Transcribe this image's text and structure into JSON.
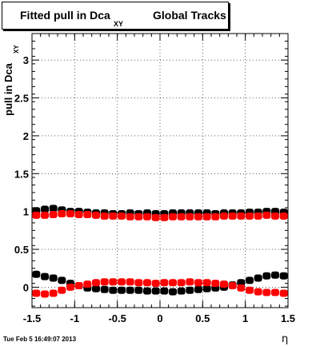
{
  "title": {
    "main": "Fitted pull in Dca",
    "subscript": "XY",
    "rest": "Global Tracks"
  },
  "footer": "Tue Feb  5 16:49:07 2013",
  "chart_data": {
    "type": "scatter",
    "xlabel": "η",
    "ylabel": "pull in Dca",
    "ylabel_subscript": "XY",
    "xlim": [
      -1.5,
      1.5
    ],
    "ylim": [
      -0.27,
      3.35
    ],
    "grid": true,
    "x_ticks": [
      "-1.5",
      "-1",
      "-0.5",
      "0",
      "0.5",
      "1",
      "1.5"
    ],
    "y_ticks": [
      "0",
      "0.5",
      "1",
      "1.5",
      "2",
      "2.5",
      "3"
    ],
    "colors": {
      "black": "#000000",
      "red": "#ff0000"
    },
    "x": [
      -1.45,
      -1.35,
      -1.25,
      -1.15,
      -1.05,
      -0.95,
      -0.85,
      -0.75,
      -0.65,
      -0.55,
      -0.45,
      -0.35,
      -0.25,
      -0.15,
      -0.05,
      0.05,
      0.15,
      0.25,
      0.35,
      0.45,
      0.55,
      0.65,
      0.75,
      0.85,
      0.95,
      1.05,
      1.15,
      1.25,
      1.35,
      1.45
    ],
    "series": [
      {
        "color": "black",
        "values": [
          1.01,
          1.03,
          1.04,
          1.02,
          1.0,
          1.0,
          0.99,
          0.98,
          0.98,
          0.97,
          0.97,
          0.98,
          0.97,
          0.98,
          0.97,
          0.97,
          0.98,
          0.98,
          0.98,
          0.98,
          0.98,
          0.97,
          0.98,
          0.98,
          0.98,
          0.99,
          0.99,
          1.0,
          1.0,
          0.99
        ]
      },
      {
        "color": "red",
        "values": [
          0.95,
          0.95,
          0.96,
          0.97,
          0.97,
          0.96,
          0.96,
          0.95,
          0.94,
          0.94,
          0.94,
          0.93,
          0.93,
          0.93,
          0.92,
          0.92,
          0.93,
          0.93,
          0.93,
          0.93,
          0.93,
          0.93,
          0.94,
          0.94,
          0.94,
          0.94,
          0.94,
          0.95,
          0.94,
          0.94
        ]
      },
      {
        "color": "black",
        "values": [
          0.17,
          0.14,
          0.12,
          0.09,
          0.05,
          0.02,
          -0.01,
          -0.02,
          -0.03,
          -0.04,
          -0.04,
          -0.04,
          -0.04,
          -0.05,
          -0.05,
          -0.05,
          -0.06,
          -0.05,
          -0.04,
          -0.03,
          -0.02,
          -0.01,
          0.0,
          0.03,
          0.06,
          0.09,
          0.12,
          0.15,
          0.16,
          0.15
        ]
      },
      {
        "color": "red",
        "values": [
          -0.08,
          -0.09,
          -0.08,
          -0.04,
          0.0,
          0.02,
          0.04,
          0.06,
          0.07,
          0.07,
          0.07,
          0.07,
          0.06,
          0.06,
          0.05,
          0.06,
          0.06,
          0.06,
          0.07,
          0.06,
          0.06,
          0.05,
          0.04,
          0.02,
          -0.01,
          -0.04,
          -0.06,
          -0.07,
          -0.07,
          -0.08
        ]
      }
    ]
  }
}
